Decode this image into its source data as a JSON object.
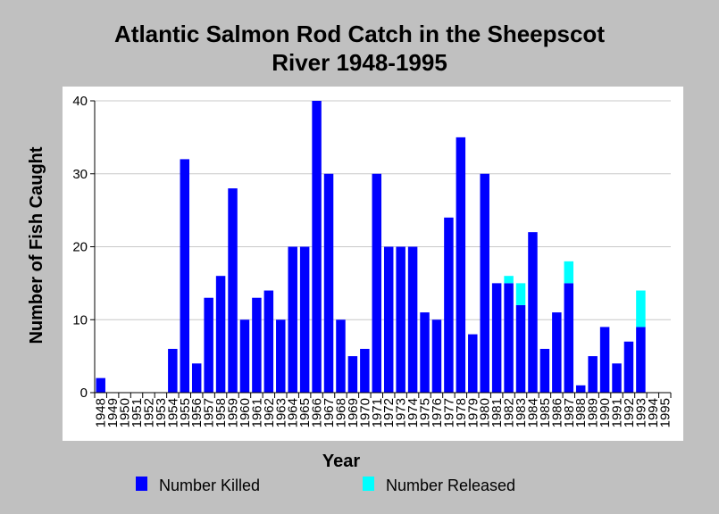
{
  "chart_data": {
    "type": "bar",
    "stacked": true,
    "title_lines": [
      "Atlantic Salmon Rod Catch in the Sheepscot",
      "River 1948-1995"
    ],
    "xlabel": "Year",
    "ylabel": "Number of Fish Caught",
    "ylim": [
      0,
      40
    ],
    "yticks": [
      0,
      10,
      20,
      30,
      40
    ],
    "grid": true,
    "legend_position": "bottom",
    "categories": [
      "1948",
      "1949",
      "1950",
      "1951",
      "1952",
      "1953",
      "1954",
      "1955",
      "1956",
      "1957",
      "1958",
      "1959",
      "1960",
      "1961",
      "1962",
      "1963",
      "1964",
      "1965",
      "1966",
      "1967",
      "1968",
      "1969",
      "1970",
      "1971",
      "1972",
      "1973",
      "1974",
      "1975",
      "1976",
      "1977",
      "1978",
      "1979",
      "1980",
      "1981",
      "1982",
      "1983",
      "1984",
      "1985",
      "1986",
      "1987",
      "1988",
      "1989",
      "1990",
      "1991",
      "1992",
      "1993",
      "1994",
      "1995"
    ],
    "category_labels": [
      "1948",
      "1949",
      "1950",
      "1951",
      "1952",
      "1953",
      "1954",
      "1955",
      "1956",
      "1957",
      "1958",
      "1959",
      "1960",
      "1961",
      "1962",
      "1963",
      "1964",
      "1965",
      "1966",
      "1967",
      "1968",
      "1969",
      "1970",
      "1971",
      "1972",
      "1973",
      "1974",
      "1975",
      "1976",
      "1977",
      "1978",
      "1979",
      "1980",
      "1981",
      "1982",
      "1983",
      "1984",
      "1985",
      "1986",
      "1987",
      "1988",
      "1989",
      "1990",
      "1991",
      "1992",
      "1993",
      "1994",
      "1995"
    ],
    "series": [
      {
        "name": "Number Killed",
        "color": "#0000ff",
        "values": [
          2,
          0,
          0,
          0,
          0,
          0,
          6,
          32,
          4,
          13,
          16,
          28,
          10,
          13,
          14,
          10,
          20,
          20,
          40,
          30,
          10,
          5,
          6,
          30,
          20,
          20,
          20,
          11,
          10,
          24,
          35,
          8,
          30,
          15,
          15,
          12,
          22,
          6,
          11,
          15,
          1,
          5,
          9,
          4,
          7,
          9,
          0,
          0
        ]
      },
      {
        "name": "Number Released",
        "color": "#00ffff",
        "values": [
          0,
          0,
          0,
          0,
          0,
          0,
          0,
          0,
          0,
          0,
          0,
          0,
          0,
          0,
          0,
          0,
          0,
          0,
          0,
          0,
          0,
          0,
          0,
          0,
          0,
          0,
          0,
          0,
          0,
          0,
          0,
          0,
          0,
          0,
          1,
          3,
          0,
          0,
          0,
          3,
          0,
          0,
          0,
          0,
          0,
          5,
          0,
          0
        ]
      }
    ]
  }
}
